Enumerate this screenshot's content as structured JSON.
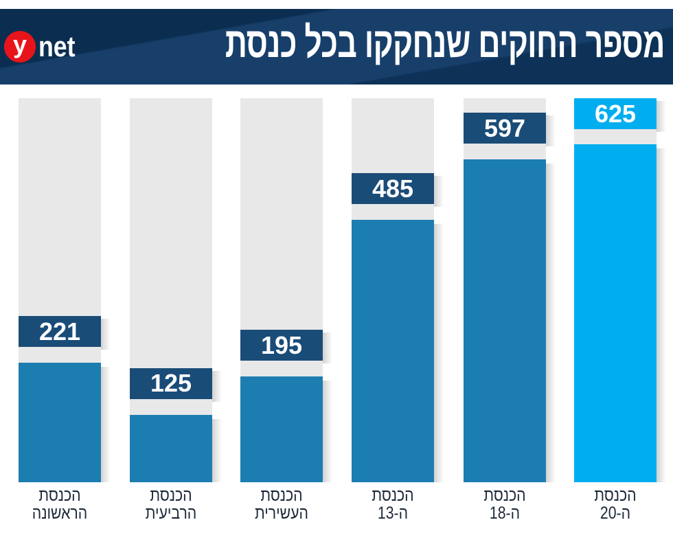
{
  "header": {
    "title": "מספר החוקים שנחקקו בכל כנסת",
    "logo_y": "y",
    "logo_net": "net"
  },
  "colors": {
    "header_bg": "#173f6a",
    "track": "#e8e8e8",
    "bar": "#1c7db0",
    "label": "#1a4c78",
    "highlight": "#00aeef",
    "logo_red": "#e8141b"
  },
  "chart_data": {
    "type": "bar",
    "title": "מספר החוקים שנחקקו בכל כנסת",
    "xlabel": "",
    "ylabel": "",
    "ylim": [
      0,
      710
    ],
    "grid": false,
    "categories": [
      [
        "הכנסת",
        "הראשונה"
      ],
      [
        "הכנסת",
        "הרביעית"
      ],
      [
        "הכנסת",
        "העשירית"
      ],
      [
        "הכנסת",
        "ה-13"
      ],
      [
        "הכנסת",
        "ה-18"
      ],
      [
        "הכנסת",
        "ה-20"
      ]
    ],
    "values": [
      221,
      125,
      195,
      485,
      597,
      625
    ],
    "highlight_index": 5
  }
}
